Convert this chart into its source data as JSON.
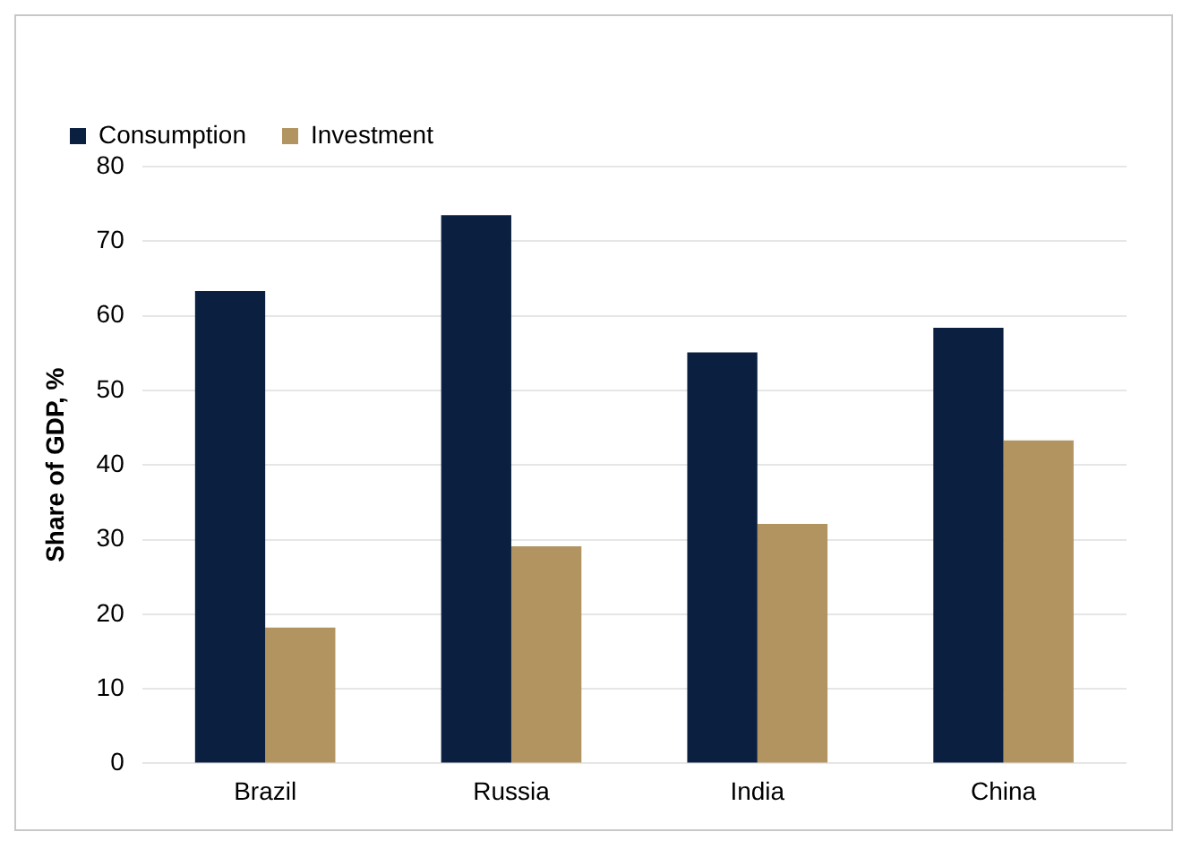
{
  "chart_data": {
    "type": "bar",
    "ylabel": "Share of GDP, %",
    "categories": [
      "Brazil",
      "Russia",
      "India",
      "China"
    ],
    "series": [
      {
        "name": "Consumption",
        "color": "#0b2040",
        "values": [
          63.3,
          73.5,
          55.1,
          58.4
        ]
      },
      {
        "name": "Investment",
        "color": "#b29461",
        "values": [
          18.2,
          29.1,
          32.1,
          43.3
        ]
      }
    ],
    "ylim": [
      0,
      80
    ],
    "yticks": [
      0,
      10,
      20,
      30,
      40,
      50,
      60,
      70,
      80
    ],
    "grid": "y",
    "legend": "top left"
  }
}
